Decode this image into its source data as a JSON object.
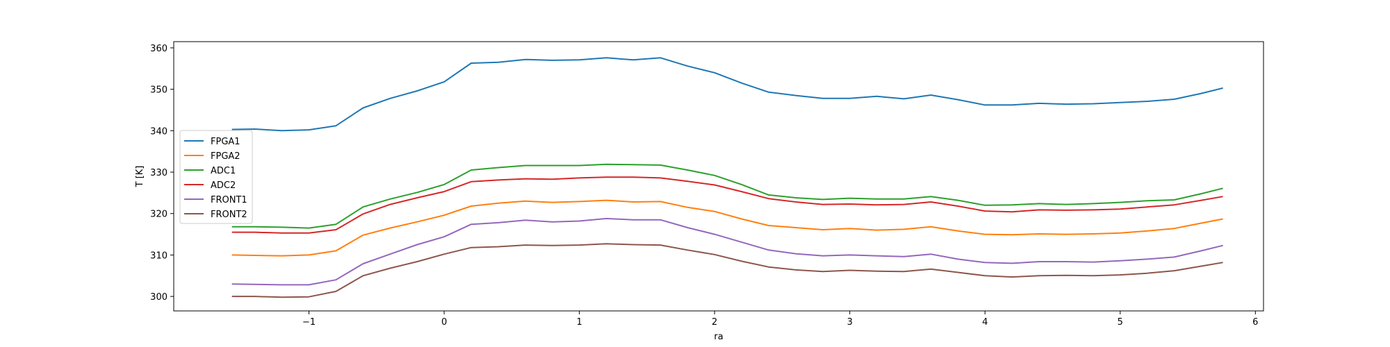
{
  "chart_data": {
    "type": "line",
    "title": "",
    "xlabel": "ra",
    "ylabel": "T [K]",
    "xlim": [
      -2.0,
      6.06
    ],
    "ylim": [
      296.5,
      361.5
    ],
    "xticks": [
      -1,
      0,
      1,
      2,
      3,
      4,
      5,
      6
    ],
    "xtick_labels": [
      "−1",
      "0",
      "1",
      "2",
      "3",
      "4",
      "5",
      "6"
    ],
    "yticks": [
      300,
      310,
      320,
      330,
      340,
      350,
      360
    ],
    "ytick_labels": [
      "300",
      "310",
      "320",
      "330",
      "340",
      "350",
      "360"
    ],
    "grid": false,
    "legend_position": "center-left",
    "x": [
      -1.57,
      -1.4,
      -1.2,
      -1.0,
      -0.8,
      -0.6,
      -0.4,
      -0.2,
      0.0,
      0.2,
      0.4,
      0.6,
      0.8,
      1.0,
      1.2,
      1.4,
      1.6,
      1.8,
      2.0,
      2.2,
      2.4,
      2.6,
      2.8,
      3.0,
      3.2,
      3.4,
      3.6,
      3.8,
      4.0,
      4.2,
      4.4,
      4.6,
      4.8,
      5.0,
      5.2,
      5.4,
      5.6,
      5.76
    ],
    "series": [
      {
        "name": "FPGA1",
        "color": "#1f77b4",
        "values": [
          340.3,
          340.4,
          340.0,
          340.2,
          341.2,
          345.5,
          347.8,
          349.6,
          351.8,
          356.3,
          356.5,
          357.2,
          357.0,
          357.1,
          357.6,
          357.1,
          357.6,
          355.6,
          354.0,
          351.5,
          349.3,
          348.5,
          347.8,
          347.8,
          348.3,
          347.7,
          348.6,
          347.5,
          346.2,
          346.2,
          346.6,
          346.4,
          346.5,
          346.8,
          347.1,
          347.6,
          349.0,
          350.3
        ]
      },
      {
        "name": "FPGA2",
        "color": "#ff7f0e",
        "values": [
          310.0,
          309.9,
          309.8,
          310.0,
          311.0,
          314.8,
          316.5,
          318.0,
          319.6,
          321.8,
          322.5,
          323.0,
          322.7,
          322.9,
          323.2,
          322.8,
          322.9,
          321.5,
          320.5,
          318.7,
          317.1,
          316.6,
          316.1,
          316.4,
          316.0,
          316.2,
          316.8,
          315.8,
          315.0,
          314.9,
          315.1,
          315.0,
          315.1,
          315.3,
          315.8,
          316.4,
          317.7,
          318.7
        ]
      },
      {
        "name": "ADC1",
        "color": "#2ca02c",
        "values": [
          316.8,
          316.8,
          316.7,
          316.5,
          317.4,
          321.6,
          323.5,
          325.1,
          327.0,
          330.5,
          331.1,
          331.6,
          331.6,
          331.6,
          331.9,
          331.8,
          331.7,
          330.5,
          329.2,
          327.0,
          324.5,
          323.8,
          323.4,
          323.7,
          323.5,
          323.5,
          324.1,
          323.2,
          322.0,
          322.1,
          322.4,
          322.2,
          322.4,
          322.7,
          323.1,
          323.3,
          324.8,
          326.1
        ]
      },
      {
        "name": "ADC2",
        "color": "#d62728",
        "values": [
          315.5,
          315.5,
          315.3,
          315.3,
          316.1,
          319.9,
          322.2,
          323.8,
          325.3,
          327.7,
          328.1,
          328.4,
          328.3,
          328.6,
          328.8,
          328.8,
          328.6,
          327.8,
          326.9,
          325.3,
          323.6,
          322.8,
          322.2,
          322.3,
          322.1,
          322.2,
          322.8,
          321.8,
          320.6,
          320.4,
          320.9,
          320.8,
          320.9,
          321.1,
          321.6,
          322.1,
          323.2,
          324.1
        ]
      },
      {
        "name": "FRONT1",
        "color": "#9467bd",
        "values": [
          303.0,
          302.9,
          302.8,
          302.8,
          304.0,
          307.9,
          310.2,
          312.5,
          314.4,
          317.4,
          317.8,
          318.4,
          318.0,
          318.2,
          318.8,
          318.5,
          318.5,
          316.6,
          315.0,
          313.1,
          311.2,
          310.3,
          309.8,
          310.0,
          309.8,
          309.6,
          310.2,
          309.0,
          308.2,
          308.0,
          308.4,
          308.4,
          308.3,
          308.6,
          309.0,
          309.5,
          311.0,
          312.3
        ]
      },
      {
        "name": "FRONT2",
        "color": "#8c564b",
        "values": [
          300.0,
          300.0,
          299.8,
          299.9,
          301.2,
          305.0,
          306.8,
          308.4,
          310.2,
          311.8,
          312.0,
          312.4,
          312.3,
          312.4,
          312.7,
          312.5,
          312.4,
          311.2,
          310.1,
          308.5,
          307.1,
          306.4,
          306.0,
          306.3,
          306.1,
          306.0,
          306.6,
          305.8,
          305.0,
          304.7,
          305.0,
          305.1,
          305.0,
          305.2,
          305.6,
          306.2,
          307.3,
          308.2
        ]
      }
    ]
  }
}
